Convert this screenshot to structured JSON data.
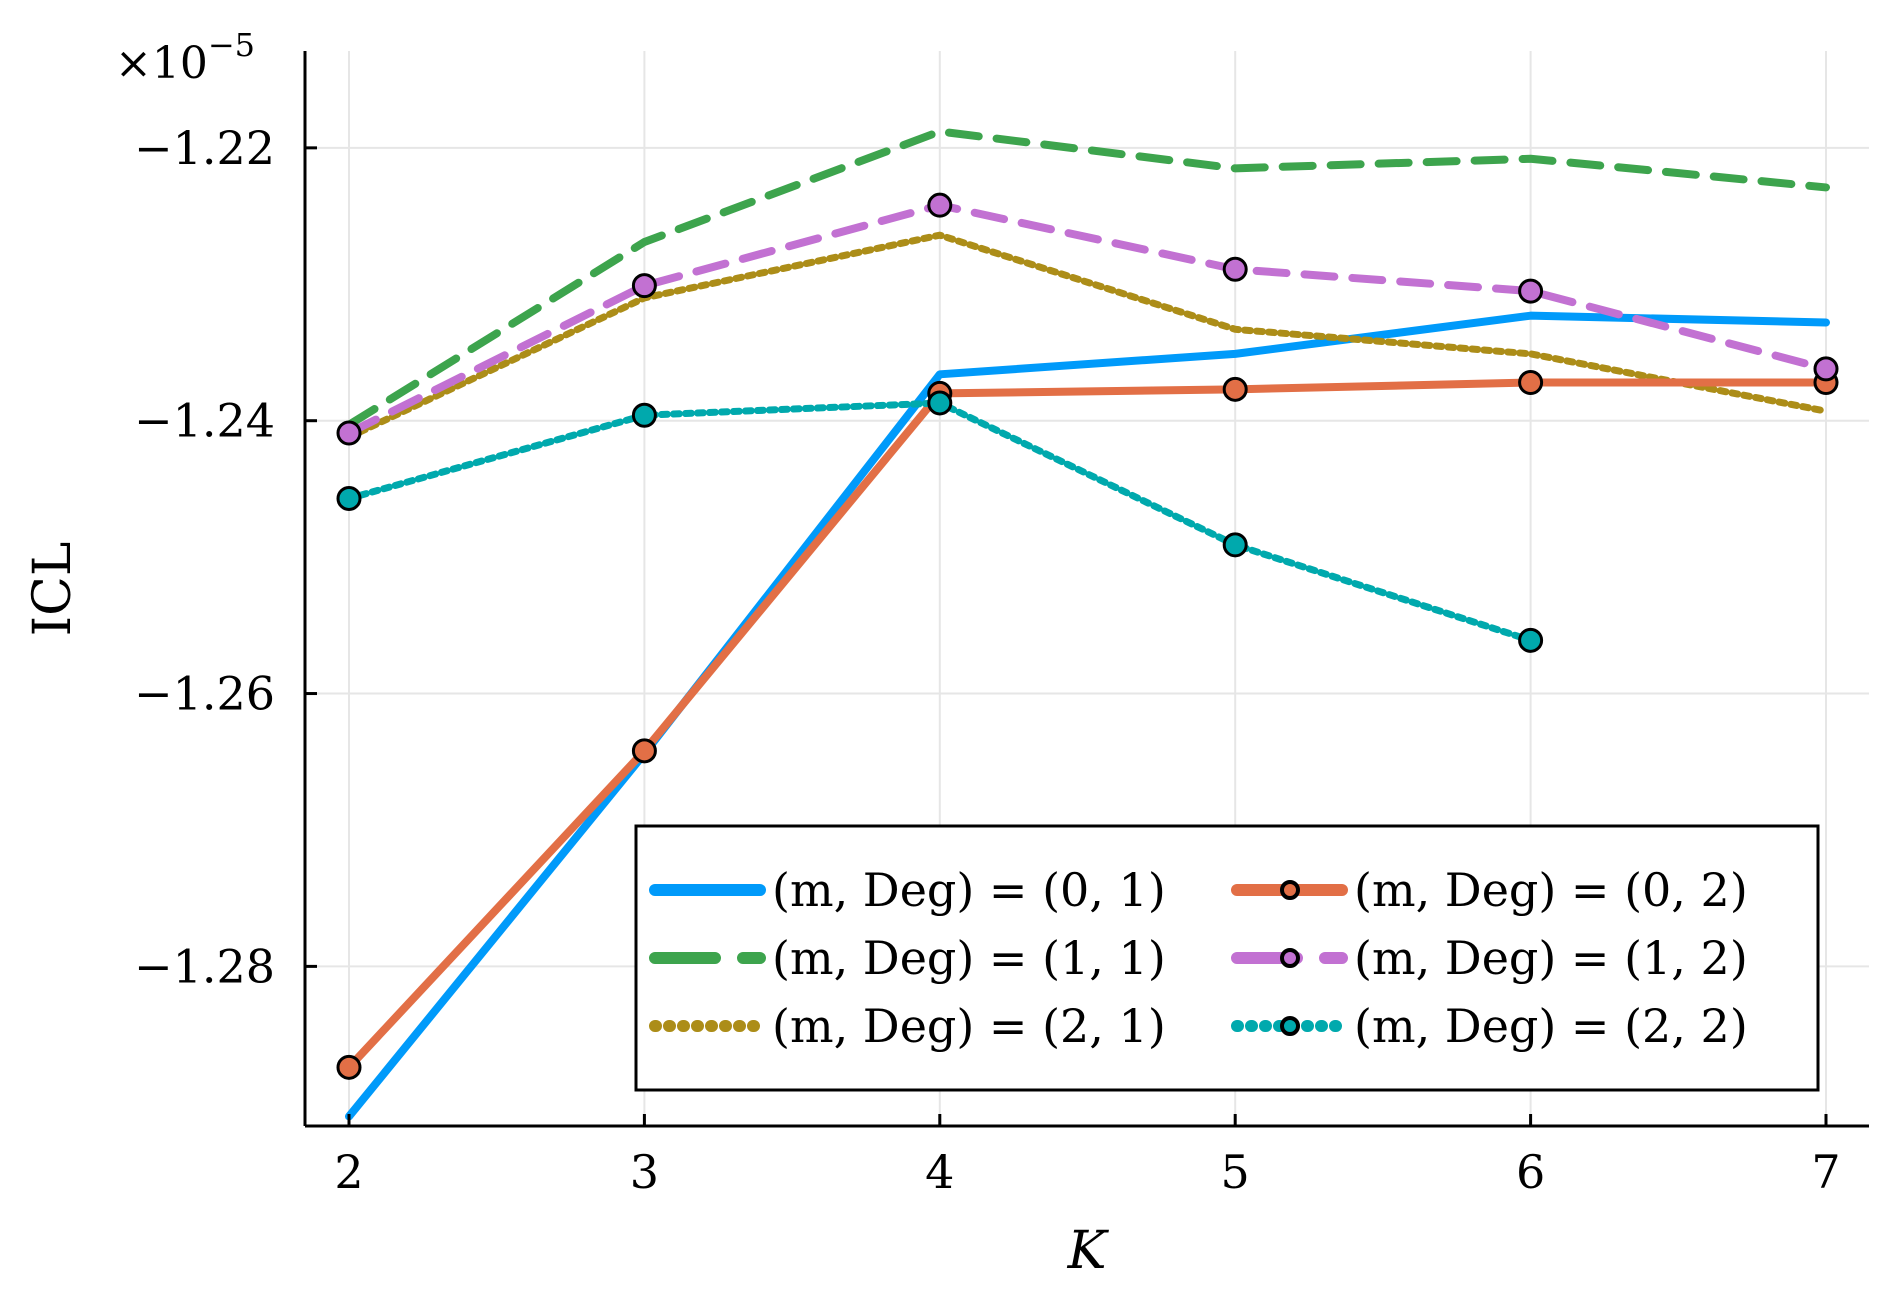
{
  "chart_data": {
    "type": "line",
    "title": "",
    "xlabel": "K",
    "ylabel": "ICL",
    "y_multiplier_label": "×10",
    "y_multiplier_exponent": "−5",
    "x": [
      2,
      3,
      4,
      5,
      6,
      7
    ],
    "xlim": [
      1.85,
      7.15
    ],
    "ylim": [
      -1.2917,
      -1.2129
    ],
    "xticks": [
      2,
      3,
      4,
      5,
      6,
      7
    ],
    "xtick_labels": [
      "2",
      "3",
      "4",
      "5",
      "6",
      "7"
    ],
    "yticks": [
      -1.22,
      -1.24,
      -1.26,
      -1.28
    ],
    "ytick_labels": [
      "−1.22",
      "−1.24",
      "−1.26",
      "−1.28"
    ],
    "grid": true,
    "legend_position": "bottom-right",
    "legend_columns": 2,
    "series": [
      {
        "name": "(m, Deg) = (0, 1)",
        "color": "#009AFA",
        "style": "solid",
        "markers": false,
        "values": [
          -1.291,
          -1.2644,
          -1.2366,
          -1.2351,
          -1.2323,
          -1.2328
        ]
      },
      {
        "name": "(m, Deg) = (1, 1)",
        "color": "#3DA44D",
        "style": "dash",
        "markers": false,
        "values": [
          -1.2403,
          -1.2269,
          -1.2188,
          -1.2215,
          -1.2208,
          -1.2229
        ]
      },
      {
        "name": "(m, Deg) = (2, 1)",
        "color": "#AC8D18",
        "style": "dot",
        "markers": false,
        "values": [
          -1.2412,
          -1.231,
          -1.2264,
          -1.2333,
          -1.2351,
          -1.2393
        ]
      },
      {
        "name": "(m, Deg) = (0, 2)",
        "color": "#E26F46",
        "style": "solid",
        "markers": true,
        "values": [
          -1.2874,
          -1.2642,
          -1.238,
          -1.2377,
          -1.2372,
          -1.2372
        ]
      },
      {
        "name": "(m, Deg) = (1, 2)",
        "color": "#C271D2",
        "style": "dash",
        "markers": true,
        "values": [
          -1.2409,
          -1.2301,
          -1.2242,
          -1.2289,
          -1.2305,
          -1.2362
        ]
      },
      {
        "name": "(m, Deg) = (2, 2)",
        "color": "#00A9AD",
        "style": "dot",
        "markers": true,
        "values": [
          -1.2457,
          -1.2396,
          -1.2387,
          -1.2491,
          -1.2561,
          null
        ]
      }
    ]
  }
}
